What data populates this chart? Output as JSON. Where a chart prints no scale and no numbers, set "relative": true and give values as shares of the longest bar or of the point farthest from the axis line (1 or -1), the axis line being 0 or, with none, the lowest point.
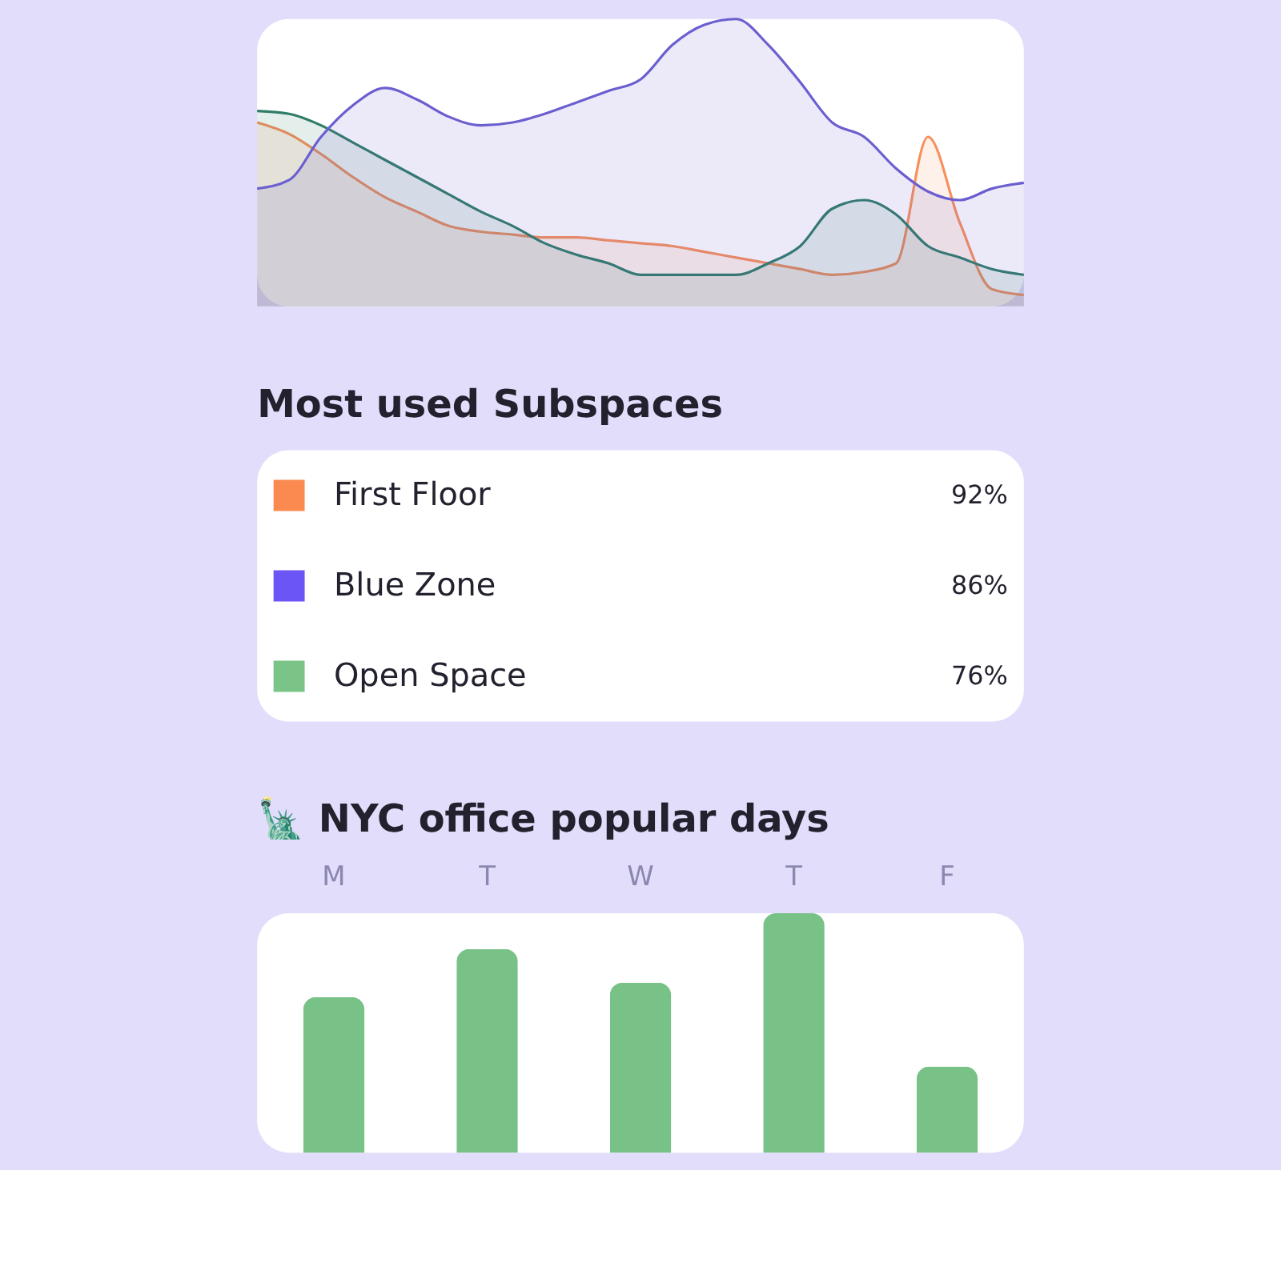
{
  "chart_data": [
    {
      "type": "area",
      "relative": true,
      "categories": [
        null,
        null,
        null,
        null,
        null,
        null,
        null,
        null,
        null,
        null,
        null,
        null,
        null,
        null,
        null,
        null,
        null,
        null,
        null,
        null,
        null,
        null,
        null,
        null,
        null
      ],
      "series": [
        {
          "color": "#f7905c",
          "values": [
            0.64,
            0.6,
            0.53,
            0.45,
            0.38,
            0.33,
            0.28,
            0.26,
            0.25,
            0.24,
            0.24,
            0.23,
            0.22,
            0.21,
            0.19,
            0.17,
            0.15,
            0.13,
            0.11,
            0.12,
            0.15,
            0.59,
            0.29,
            0.06,
            0.04
          ]
        },
        {
          "color": "#2f7d68",
          "values": [
            0.68,
            0.67,
            0.63,
            0.57,
            0.51,
            0.45,
            0.39,
            0.33,
            0.28,
            0.22,
            0.18,
            0.15,
            0.11,
            0.11,
            0.11,
            0.11,
            0.15,
            0.21,
            0.34,
            0.37,
            0.32,
            0.21,
            0.17,
            0.13,
            0.11
          ]
        },
        {
          "color": "#6b5fd0",
          "values": [
            0.41,
            0.44,
            0.59,
            0.7,
            0.76,
            0.72,
            0.66,
            0.63,
            0.64,
            0.67,
            0.71,
            0.75,
            0.79,
            0.91,
            0.98,
            1.0,
            0.91,
            0.78,
            0.64,
            0.59,
            0.48,
            0.4,
            0.37,
            0.41,
            0.43
          ]
        }
      ]
    },
    {
      "type": "other",
      "title": "Most used Subspaces",
      "categories": [
        "First Floor",
        "Blue Zone",
        "Open Space"
      ],
      "colors": [
        "#fa8a50",
        "#6c55f5",
        "#7ac487"
      ],
      "value_labels": [
        "92%",
        "86%",
        "76%"
      ]
    },
    {
      "type": "bar",
      "title": "🗽 NYC office popular days",
      "relative": true,
      "categories": [
        "M",
        "T",
        "W",
        "T",
        "F"
      ],
      "values": [
        0.65,
        0.85,
        0.71,
        1.0,
        0.36
      ],
      "color": "#78c287"
    }
  ]
}
